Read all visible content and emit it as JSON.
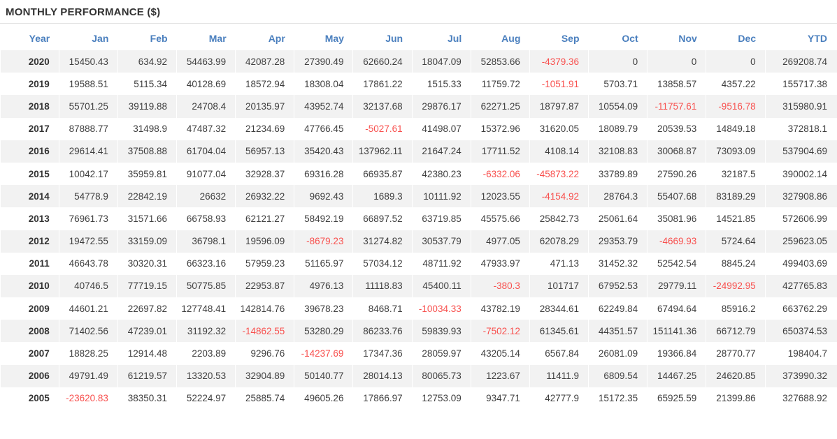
{
  "title": "MONTHLY PERFORMANCE ($)",
  "colors": {
    "header_text": "#4a7fbe",
    "title_text": "#333333",
    "data_text": "#3f3f3f",
    "negative_value": "#f8504e",
    "row_stripe": "#f2f2f2",
    "divider": "#e3e3e3"
  },
  "chart_data": {
    "type": "table",
    "title": "MONTHLY PERFORMANCE ($)",
    "columns": [
      "Year",
      "Jan",
      "Feb",
      "Mar",
      "Apr",
      "May",
      "Jun",
      "Jul",
      "Aug",
      "Sep",
      "Oct",
      "Nov",
      "Dec",
      "YTD"
    ],
    "rows": [
      {
        "year": "2020",
        "values": [
          "15450.43",
          "634.92",
          "54463.99",
          "42087.28",
          "27390.49",
          "62660.24",
          "18047.09",
          "52853.66",
          "-4379.36",
          "0",
          "0",
          "0",
          "269208.74"
        ]
      },
      {
        "year": "2019",
        "values": [
          "19588.51",
          "5115.34",
          "40128.69",
          "18572.94",
          "18308.04",
          "17861.22",
          "1515.33",
          "11759.72",
          "-1051.91",
          "5703.71",
          "13858.57",
          "4357.22",
          "155717.38"
        ]
      },
      {
        "year": "2018",
        "values": [
          "55701.25",
          "39119.88",
          "24708.4",
          "20135.97",
          "43952.74",
          "32137.68",
          "29876.17",
          "62271.25",
          "18797.87",
          "10554.09",
          "-11757.61",
          "-9516.78",
          "315980.91"
        ]
      },
      {
        "year": "2017",
        "values": [
          "87888.77",
          "31498.9",
          "47487.32",
          "21234.69",
          "47766.45",
          "-5027.61",
          "41498.07",
          "15372.96",
          "31620.05",
          "18089.79",
          "20539.53",
          "14849.18",
          "372818.1"
        ]
      },
      {
        "year": "2016",
        "values": [
          "29614.41",
          "37508.88",
          "61704.04",
          "56957.13",
          "35420.43",
          "137962.11",
          "21647.24",
          "17711.52",
          "4108.14",
          "32108.83",
          "30068.87",
          "73093.09",
          "537904.69"
        ]
      },
      {
        "year": "2015",
        "values": [
          "10042.17",
          "35959.81",
          "91077.04",
          "32928.37",
          "69316.28",
          "66935.87",
          "42380.23",
          "-6332.06",
          "-45873.22",
          "33789.89",
          "27590.26",
          "32187.5",
          "390002.14"
        ]
      },
      {
        "year": "2014",
        "values": [
          "54778.9",
          "22842.19",
          "26632",
          "26932.22",
          "9692.43",
          "1689.3",
          "10111.92",
          "12023.55",
          "-4154.92",
          "28764.3",
          "55407.68",
          "83189.29",
          "327908.86"
        ]
      },
      {
        "year": "2013",
        "values": [
          "76961.73",
          "31571.66",
          "66758.93",
          "62121.27",
          "58492.19",
          "66897.52",
          "63719.85",
          "45575.66",
          "25842.73",
          "25061.64",
          "35081.96",
          "14521.85",
          "572606.99"
        ]
      },
      {
        "year": "2012",
        "values": [
          "19472.55",
          "33159.09",
          "36798.1",
          "19596.09",
          "-8679.23",
          "31274.82",
          "30537.79",
          "4977.05",
          "62078.29",
          "29353.79",
          "-4669.93",
          "5724.64",
          "259623.05"
        ]
      },
      {
        "year": "2011",
        "values": [
          "46643.78",
          "30320.31",
          "66323.16",
          "57959.23",
          "51165.97",
          "57034.12",
          "48711.92",
          "47933.97",
          "471.13",
          "31452.32",
          "52542.54",
          "8845.24",
          "499403.69"
        ]
      },
      {
        "year": "2010",
        "values": [
          "40746.5",
          "77719.15",
          "50775.85",
          "22953.87",
          "4976.13",
          "11118.83",
          "45400.11",
          "-380.3",
          "101717",
          "67952.53",
          "29779.11",
          "-24992.95",
          "427765.83"
        ]
      },
      {
        "year": "2009",
        "values": [
          "44601.21",
          "22697.82",
          "127748.41",
          "142814.76",
          "39678.23",
          "8468.71",
          "-10034.33",
          "43782.19",
          "28344.61",
          "62249.84",
          "67494.64",
          "85916.2",
          "663762.29"
        ]
      },
      {
        "year": "2008",
        "values": [
          "71402.56",
          "47239.01",
          "31192.32",
          "-14862.55",
          "53280.29",
          "86233.76",
          "59839.93",
          "-7502.12",
          "61345.61",
          "44351.57",
          "151141.36",
          "66712.79",
          "650374.53"
        ]
      },
      {
        "year": "2007",
        "values": [
          "18828.25",
          "12914.48",
          "2203.89",
          "9296.76",
          "-14237.69",
          "17347.36",
          "28059.97",
          "43205.14",
          "6567.84",
          "26081.09",
          "19366.84",
          "28770.77",
          "198404.7"
        ]
      },
      {
        "year": "2006",
        "values": [
          "49791.49",
          "61219.57",
          "13320.53",
          "32904.89",
          "50140.77",
          "28014.13",
          "80065.73",
          "1223.67",
          "11411.9",
          "6809.54",
          "14467.25",
          "24620.85",
          "373990.32"
        ]
      },
      {
        "year": "2005",
        "values": [
          "-23620.83",
          "38350.31",
          "52224.97",
          "25885.74",
          "49605.26",
          "17866.97",
          "12753.09",
          "9347.71",
          "42777.9",
          "15172.35",
          "65925.59",
          "21399.86",
          "327688.92"
        ]
      }
    ]
  }
}
